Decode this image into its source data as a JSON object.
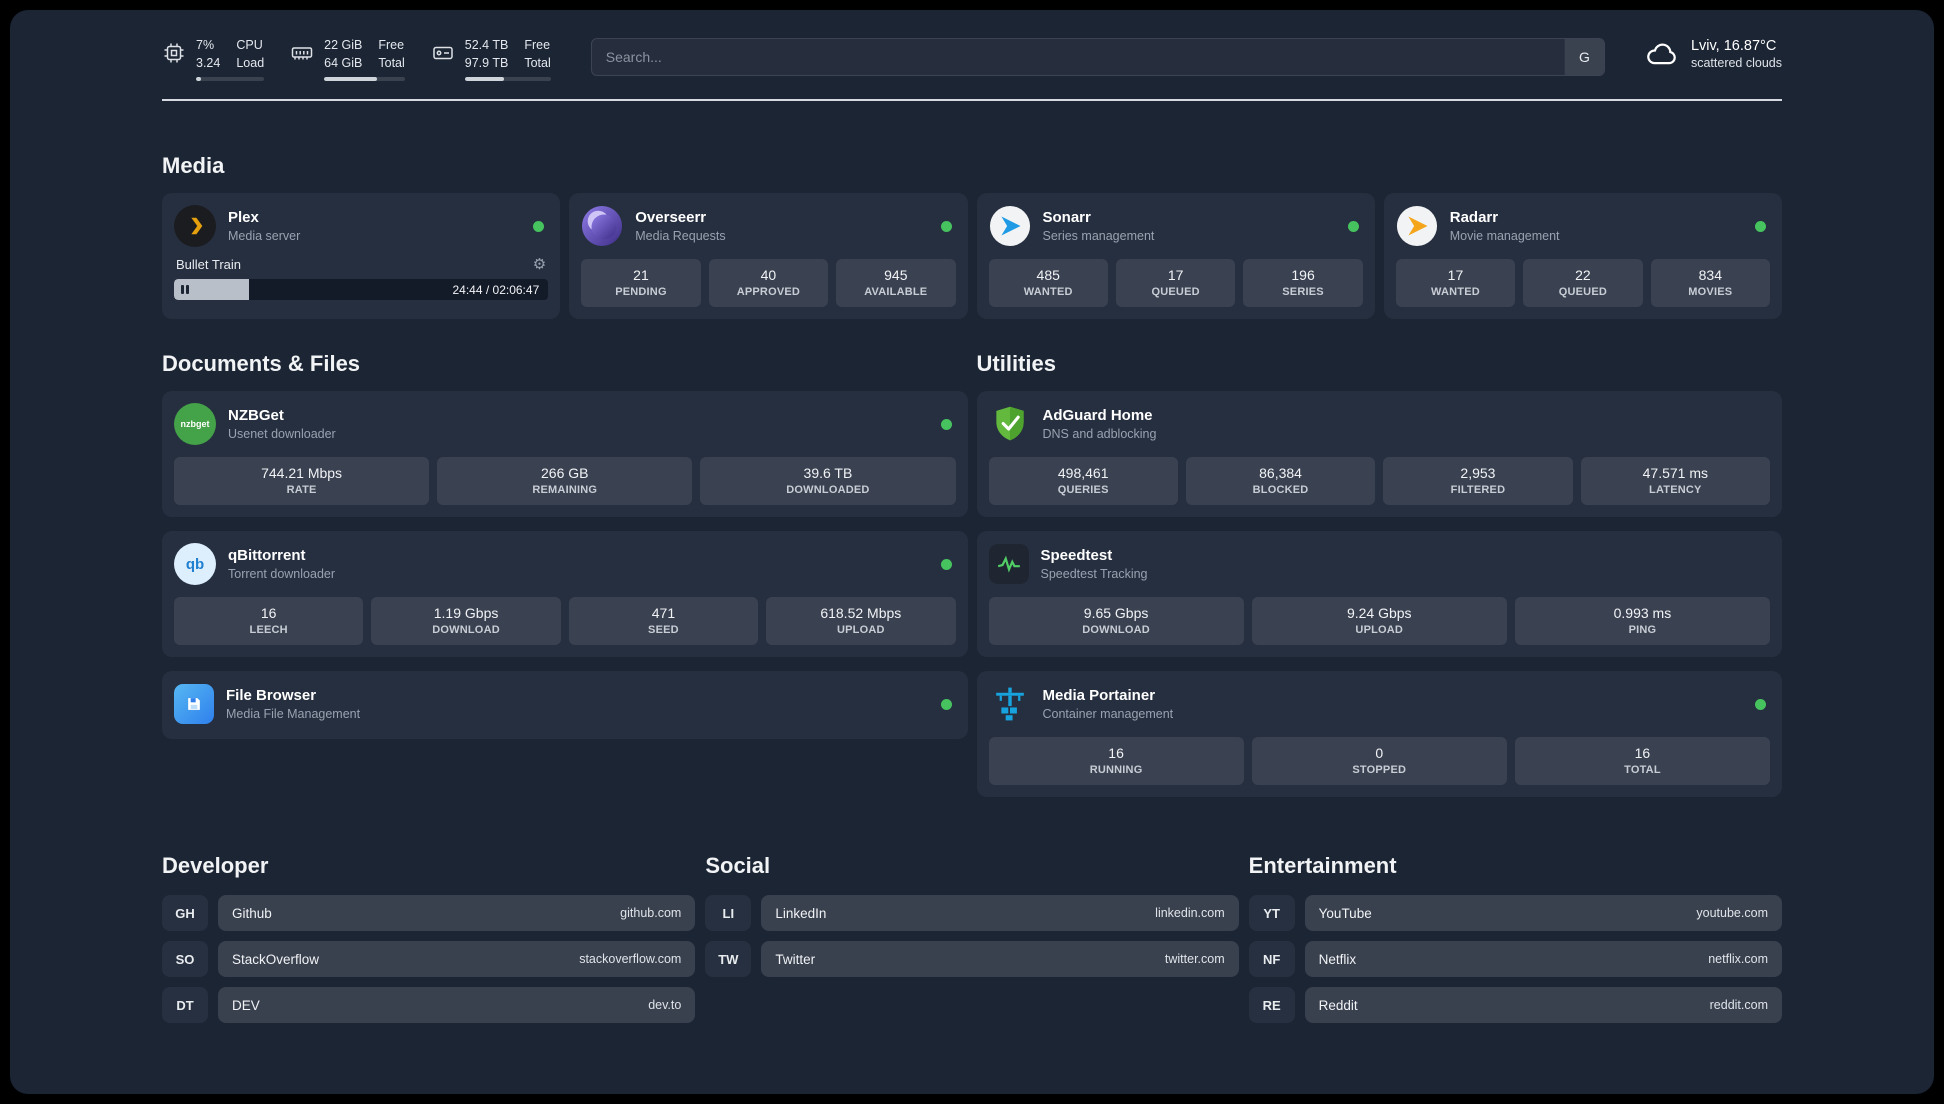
{
  "topbar": {
    "cpu": {
      "value1": "7%",
      "value2": "3.24",
      "label1": "CPU",
      "label2": "Load",
      "progress": 7
    },
    "ram": {
      "value1": "22 GiB",
      "value2": "64 GiB",
      "label1": "Free",
      "label2": "Total",
      "progress": 66
    },
    "disk": {
      "value1": "52.4 TB",
      "value2": "97.9 TB",
      "label1": "Free",
      "label2": "Total",
      "progress": 46
    },
    "search": {
      "placeholder": "Search...",
      "engine_button": "G"
    },
    "weather": {
      "location": "Lviv, 16.87°C",
      "condition": "scattered clouds"
    }
  },
  "sections": {
    "media": {
      "title": "Media",
      "plex": {
        "name": "Plex",
        "subtitle": "Media server",
        "now_playing": {
          "title": "Bullet Train",
          "time": "24:44 / 02:06:47",
          "progress": 20
        }
      },
      "overseerr": {
        "name": "Overseerr",
        "subtitle": "Media Requests",
        "stats": [
          {
            "value": "21",
            "label": "PENDING"
          },
          {
            "value": "40",
            "label": "APPROVED"
          },
          {
            "value": "945",
            "label": "AVAILABLE"
          }
        ]
      },
      "sonarr": {
        "name": "Sonarr",
        "subtitle": "Series management",
        "stats": [
          {
            "value": "485",
            "label": "WANTED"
          },
          {
            "value": "17",
            "label": "QUEUED"
          },
          {
            "value": "196",
            "label": "SERIES"
          }
        ]
      },
      "radarr": {
        "name": "Radarr",
        "subtitle": "Movie management",
        "stats": [
          {
            "value": "17",
            "label": "WANTED"
          },
          {
            "value": "22",
            "label": "QUEUED"
          },
          {
            "value": "834",
            "label": "MOVIES"
          }
        ]
      }
    },
    "documents": {
      "title": "Documents & Files",
      "nzbget": {
        "name": "NZBGet",
        "subtitle": "Usenet downloader",
        "stats": [
          {
            "value": "744.21 Mbps",
            "label": "RATE"
          },
          {
            "value": "266 GB",
            "label": "REMAINING"
          },
          {
            "value": "39.6 TB",
            "label": "DOWNLOADED"
          }
        ]
      },
      "qbittorrent": {
        "name": "qBittorrent",
        "subtitle": "Torrent downloader",
        "stats": [
          {
            "value": "16",
            "label": "LEECH"
          },
          {
            "value": "1.19 Gbps",
            "label": "DOWNLOAD"
          },
          {
            "value": "471",
            "label": "SEED"
          },
          {
            "value": "618.52 Mbps",
            "label": "UPLOAD"
          }
        ]
      },
      "filebrowser": {
        "name": "File Browser",
        "subtitle": "Media File Management"
      }
    },
    "utilities": {
      "title": "Utilities",
      "adguard": {
        "name": "AdGuard Home",
        "subtitle": "DNS and adblocking",
        "stats": [
          {
            "value": "498,461",
            "label": "QUERIES"
          },
          {
            "value": "86,384",
            "label": "BLOCKED"
          },
          {
            "value": "2,953",
            "label": "FILTERED"
          },
          {
            "value": "47.571 ms",
            "label": "LATENCY"
          }
        ]
      },
      "speedtest": {
        "name": "Speedtest",
        "subtitle": "Speedtest Tracking",
        "stats": [
          {
            "value": "9.65 Gbps",
            "label": "DOWNLOAD"
          },
          {
            "value": "9.24 Gbps",
            "label": "UPLOAD"
          },
          {
            "value": "0.993 ms",
            "label": "PING"
          }
        ]
      },
      "portainer": {
        "name": "Media Portainer",
        "subtitle": "Container management",
        "stats": [
          {
            "value": "16",
            "label": "RUNNING"
          },
          {
            "value": "0",
            "label": "STOPPED"
          },
          {
            "value": "16",
            "label": "TOTAL"
          }
        ]
      }
    }
  },
  "bookmarks": {
    "developer": {
      "title": "Developer",
      "items": [
        {
          "abbr": "GH",
          "name": "Github",
          "url": "github.com"
        },
        {
          "abbr": "SO",
          "name": "StackOverflow",
          "url": "stackoverflow.com"
        },
        {
          "abbr": "DT",
          "name": "DEV",
          "url": "dev.to"
        }
      ]
    },
    "social": {
      "title": "Social",
      "items": [
        {
          "abbr": "LI",
          "name": "LinkedIn",
          "url": "linkedin.com"
        },
        {
          "abbr": "TW",
          "name": "Twitter",
          "url": "twitter.com"
        }
      ]
    },
    "entertainment": {
      "title": "Entertainment",
      "items": [
        {
          "abbr": "YT",
          "name": "YouTube",
          "url": "youtube.com"
        },
        {
          "abbr": "NF",
          "name": "Netflix",
          "url": "netflix.com"
        },
        {
          "abbr": "RE",
          "name": "Reddit",
          "url": "reddit.com"
        }
      ]
    }
  }
}
